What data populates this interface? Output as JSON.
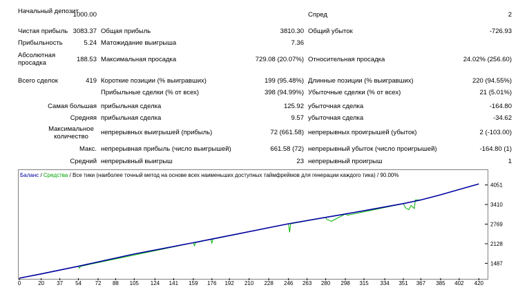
{
  "stats": {
    "initial_deposit": {
      "label": "Начальный депозит",
      "value": "1000.00"
    },
    "spread": {
      "label": "Спред",
      "value": "2"
    },
    "net_profit": {
      "label": "Чистая прибыль",
      "value": "3083.37"
    },
    "gross_profit": {
      "label": "Общая прибыль",
      "value": "3810.30"
    },
    "gross_loss": {
      "label": "Общий убыток",
      "value": "-726.93"
    },
    "profit_factor": {
      "label": "Прибыльность",
      "value": "5.24"
    },
    "expected_payoff": {
      "label": "Матожидание выигрыша",
      "value": "7.36"
    },
    "absolute_drawdown": {
      "label": "Абсолютная просадка",
      "value": "188.53"
    },
    "maximal_drawdown": {
      "label": "Максимальная просадка",
      "value": "729.08 (20.07%)"
    },
    "relative_drawdown": {
      "label": "Относительная просадка",
      "value": "24.02% (256.60)"
    },
    "total_trades": {
      "label": "Всего сделок",
      "value": "419"
    },
    "short_positions": {
      "label": "Короткие позиции (% выигравших)",
      "value": "199 (95.48%)"
    },
    "long_positions": {
      "label": "Длинные позиции (% выигравших)",
      "value": "220 (94.55%)"
    },
    "profit_trades": {
      "label": "Прибыльные сделки (% от всех)",
      "value": "398 (94.99%)"
    },
    "loss_trades": {
      "label": "Убыточные сделки (% от всех)",
      "value": "21 (5.01%)"
    },
    "largest_label": "Самая большая",
    "largest_profit": {
      "label": "прибыльная сделка",
      "value": "125.92"
    },
    "largest_loss": {
      "label": "убыточная сделка",
      "value": "-164.80"
    },
    "average_label": "Средняя",
    "average_profit": {
      "label": "прибыльная сделка",
      "value": "9.57"
    },
    "average_loss": {
      "label": "убыточная сделка",
      "value": "-34.62"
    },
    "maximum_label": "Максимальное количество",
    "max_consec_wins": {
      "label": "непрерывных выигрышей (прибыль)",
      "value": "72 (661.58)"
    },
    "max_consec_losses": {
      "label": "непрерывных проигрышей (убыток)",
      "value": "2 (-103.00)"
    },
    "maximal_label": "Макс.",
    "max_consec_profit": {
      "label": "непрерывная прибыль (число выигрышей)",
      "value": "661.58 (72)"
    },
    "max_consec_loss": {
      "label": "непрерывный убыток (число проигрышей)",
      "value": "-164.80 (1)"
    },
    "avg_label": "Средний",
    "avg_consec_wins": {
      "label": "непрерывный выигрыш",
      "value": "23"
    },
    "avg_consec_losses": {
      "label": "непрерывный проигрыш",
      "value": "1"
    }
  },
  "chart_legend": {
    "balance": "Баланс",
    "sep1": " / ",
    "equity": "Средства",
    "rest": " / Все тики (наиболее точный метод на основе всех наименьших доступных таймфреймов для генерации каждого тика) / 90.00%"
  },
  "colors": {
    "balance": "#0000a0",
    "equity": "#00b000",
    "frame": "#7f7f7f"
  },
  "chart_data": {
    "type": "line",
    "x_ticks": [
      0,
      20,
      37,
      54,
      72,
      88,
      105,
      124,
      141,
      159,
      176,
      192,
      210,
      228,
      246,
      263,
      280,
      298,
      315,
      334,
      351,
      367,
      385,
      402,
      420
    ],
    "y_ticks": [
      1487,
      2128,
      2769,
      3410,
      4051
    ],
    "xlim": [
      0,
      428
    ],
    "ylim": [
      1000,
      4200
    ],
    "series": [
      {
        "name": "Баланс",
        "x": [
          0,
          20,
          54,
          105,
          159,
          176,
          246,
          280,
          298,
          351,
          367,
          385,
          420
        ],
        "y": [
          1000,
          1140,
          1390,
          1790,
          2160,
          2280,
          2780,
          2990,
          3100,
          3440,
          3560,
          3730,
          4085
        ]
      },
      {
        "name": "Средства",
        "x": [
          0,
          54,
          55,
          56,
          159,
          160,
          161,
          175,
          176,
          177,
          246,
          247,
          248,
          280,
          281,
          283,
          285,
          298,
          300,
          351,
          353,
          356,
          358,
          361,
          362,
          367,
          385,
          420
        ],
        "y": [
          1000,
          1390,
          1330,
          1390,
          2160,
          2060,
          2160,
          2270,
          2150,
          2280,
          2780,
          2500,
          2780,
          2990,
          2920,
          2900,
          2860,
          3100,
          3060,
          3440,
          3300,
          3240,
          3380,
          3280,
          3560,
          3560,
          3730,
          4085
        ]
      }
    ]
  }
}
